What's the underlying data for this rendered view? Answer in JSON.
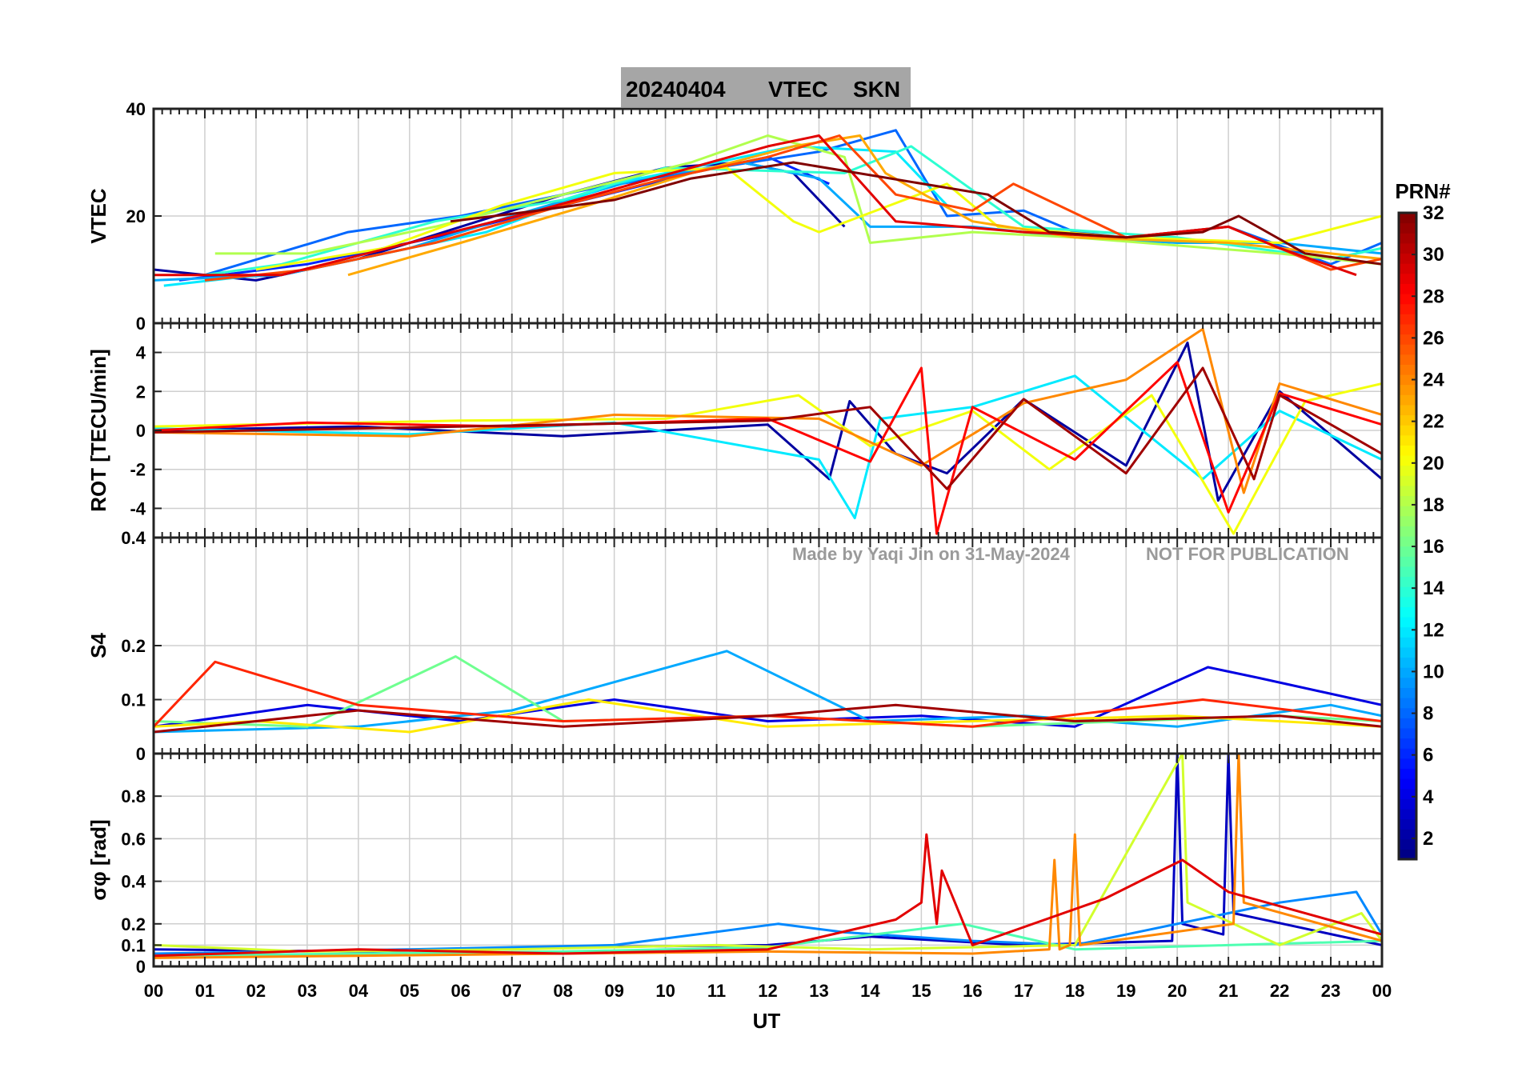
{
  "title": {
    "date": "20240404",
    "quantity": "VTEC",
    "station": "SKN",
    "bg_color": "#a6a6a6"
  },
  "watermark": {
    "author": "Made by Yaqi Jin on 31-May-2024",
    "notice": "NOT FOR PUBLICATION"
  },
  "colorbar": {
    "label": "PRN#",
    "ticks": [
      "2",
      "4",
      "6",
      "8",
      "10",
      "12",
      "14",
      "16",
      "18",
      "20",
      "22",
      "24",
      "26",
      "28",
      "30",
      "32"
    ],
    "range": [
      1,
      32
    ],
    "colormap": "jet"
  },
  "chart_data": [
    {
      "panel": "vtec",
      "type": "line",
      "ylabel": "VTEC",
      "ylim": [
        0,
        40
      ],
      "yticks": [
        "0",
        "20",
        "40"
      ],
      "xlim": [
        0,
        24
      ],
      "grid": true,
      "series": [
        {
          "prn": 2,
          "x": [
            0,
            2,
            4,
            6,
            8,
            10,
            11.5,
            12.5,
            13.5
          ],
          "y": [
            10,
            8,
            12,
            18,
            24,
            29,
            30,
            28,
            18
          ]
        },
        {
          "prn": 6,
          "x": [
            0.5,
            3,
            5.5,
            8,
            10.5,
            12,
            13.2
          ],
          "y": [
            8,
            11,
            16,
            22,
            28,
            31,
            26
          ]
        },
        {
          "prn": 8,
          "x": [
            1,
            3.8,
            6,
            8.5,
            11,
            13,
            14.5,
            15.5,
            17,
            18,
            19,
            21,
            23,
            24
          ],
          "y": [
            9,
            17,
            20,
            25,
            29,
            32,
            36,
            20,
            21,
            17,
            16,
            18,
            11,
            15
          ]
        },
        {
          "prn": 10,
          "x": [
            0,
            2.5,
            5,
            7,
            9.5,
            11.5,
            13,
            14,
            16,
            18,
            20,
            22,
            24
          ],
          "y": [
            8,
            9,
            14,
            20,
            27,
            30,
            27,
            18,
            18,
            16,
            15,
            15,
            13
          ]
        },
        {
          "prn": 12,
          "x": [
            0.2,
            3,
            6.5,
            9,
            11,
            12.5,
            14.5,
            15.5
          ],
          "y": [
            7,
            10,
            17,
            26,
            30,
            33,
            32,
            22
          ]
        },
        {
          "prn": 14,
          "x": [
            1,
            2.5,
            5.5,
            8,
            10,
            13.5,
            14.8,
            17,
            20,
            23,
            24
          ],
          "y": [
            9,
            11,
            19,
            23,
            29,
            28,
            33,
            18,
            16,
            12,
            14
          ]
        },
        {
          "prn": 18,
          "x": [
            1.2,
            3,
            5.5,
            8,
            10.5,
            12,
            13.5,
            14,
            16,
            18,
            22,
            24
          ],
          "y": [
            13,
            13,
            18,
            24,
            30,
            35,
            31,
            15,
            17,
            16,
            13,
            11
          ]
        },
        {
          "prn": 20,
          "x": [
            2,
            4.5,
            6.8,
            9,
            11.2,
            12.5,
            13,
            15.5,
            16.5,
            19,
            22,
            24
          ],
          "y": [
            10,
            14,
            22,
            28,
            29,
            19,
            17,
            26,
            18,
            16,
            15,
            20
          ]
        },
        {
          "prn": 23,
          "x": [
            3.8,
            6,
            8.5,
            10.5,
            12.5,
            13.8,
            14.3,
            16,
            18,
            21,
            24
          ],
          "y": [
            9,
            15,
            22,
            28,
            33,
            35,
            28,
            19,
            16,
            15,
            12
          ]
        },
        {
          "prn": 26,
          "x": [
            1,
            3,
            5.5,
            8,
            10,
            12,
            13.4,
            14.5,
            16,
            16.8,
            19,
            21,
            23,
            24
          ],
          "y": [
            8,
            10,
            15,
            22,
            27,
            31,
            35,
            24,
            21,
            26,
            16,
            18,
            10,
            12
          ]
        },
        {
          "prn": 29,
          "x": [
            0,
            2.5,
            5,
            7.5,
            10.5,
            12,
            13,
            14.5,
            17,
            19,
            21,
            22,
            23.5
          ],
          "y": [
            9,
            9,
            15,
            21,
            29,
            33,
            35,
            19,
            17,
            16,
            18,
            14,
            9
          ]
        },
        {
          "prn": 32,
          "x": [
            5.8,
            7.5,
            9,
            10.5,
            12.5,
            16.3,
            17.5,
            19,
            20.5,
            21.2,
            22.5,
            24
          ],
          "y": [
            19,
            21,
            23,
            27,
            30,
            24,
            17,
            16,
            17,
            20,
            13,
            11
          ]
        }
      ]
    },
    {
      "panel": "rot",
      "type": "line",
      "ylabel": "ROT [TECU/min]",
      "ylim": [
        -5.5,
        5.5
      ],
      "yticks": [
        "-4",
        "-2",
        "0",
        "2",
        "4"
      ],
      "xlim": [
        0,
        24
      ],
      "grid": true,
      "series": [
        {
          "prn": 2,
          "x": [
            0,
            4,
            8,
            12,
            13.2,
            13.6,
            14.5,
            15.5,
            17,
            19,
            20.2,
            20.8,
            22,
            24
          ],
          "y": [
            0,
            0.2,
            -0.3,
            0.3,
            -2.5,
            1.5,
            -1.2,
            -2.2,
            1.6,
            -1.8,
            4.5,
            -3.6,
            2.0,
            -2.5
          ]
        },
        {
          "prn": 12,
          "x": [
            0,
            5,
            9,
            13,
            13.7,
            14.2,
            16,
            18,
            20.5,
            22,
            24
          ],
          "y": [
            0.1,
            -0.2,
            0.4,
            -1.5,
            -4.5,
            0.6,
            1.2,
            2.8,
            -2.5,
            1.0,
            -1.5
          ]
        },
        {
          "prn": 20,
          "x": [
            0,
            6,
            10,
            12.6,
            14,
            16,
            17.5,
            19.5,
            20.5,
            21.1,
            22.5,
            24
          ],
          "y": [
            0.2,
            0.5,
            0.6,
            1.8,
            -0.8,
            1.0,
            -2.0,
            1.8,
            -2.6,
            -5.3,
            1.5,
            2.4
          ]
        },
        {
          "prn": 24,
          "x": [
            0,
            5,
            9,
            13,
            15,
            17,
            19,
            20.5,
            21.3,
            22,
            24
          ],
          "y": [
            -0.1,
            -0.3,
            0.8,
            0.6,
            -1.8,
            1.4,
            2.6,
            5.2,
            -3.2,
            2.4,
            0.8
          ]
        },
        {
          "prn": 28,
          "x": [
            0,
            3,
            7,
            12,
            14,
            15,
            15.3,
            16,
            18,
            20,
            21,
            22,
            24
          ],
          "y": [
            0,
            0.4,
            0.2,
            0.6,
            -1.6,
            3.2,
            -5.3,
            1.2,
            -1.5,
            3.5,
            -4.2,
            1.9,
            0.3
          ]
        },
        {
          "prn": 31,
          "x": [
            0,
            4,
            8,
            12,
            14,
            15.5,
            17,
            19,
            20.5,
            21.5,
            22,
            24
          ],
          "y": [
            -0.1,
            0.1,
            0.3,
            0.5,
            1.2,
            -3.0,
            1.6,
            -2.2,
            3.2,
            -2.5,
            1.8,
            -1.2
          ]
        }
      ]
    },
    {
      "panel": "s4",
      "type": "line",
      "ylabel": "S4",
      "ylim": [
        0,
        0.4
      ],
      "yticks": [
        "0",
        "0.1",
        "0.2",
        "0.4"
      ],
      "xlim": [
        0,
        24
      ],
      "grid": true,
      "series": [
        {
          "prn": 4,
          "x": [
            0,
            3,
            6,
            9,
            12,
            15,
            18,
            20.6,
            21.6,
            24
          ],
          "y": [
            0.05,
            0.09,
            0.06,
            0.1,
            0.06,
            0.07,
            0.05,
            0.16,
            0.14,
            0.09
          ]
        },
        {
          "prn": 10,
          "x": [
            0,
            4,
            7,
            11.2,
            14,
            17,
            20,
            23,
            24
          ],
          "y": [
            0.04,
            0.05,
            0.08,
            0.19,
            0.06,
            0.07,
            0.05,
            0.09,
            0.07
          ]
        },
        {
          "prn": 16,
          "x": [
            0,
            3,
            5.9,
            8,
            12,
            16,
            19,
            22,
            24
          ],
          "y": [
            0.06,
            0.05,
            0.18,
            0.06,
            0.07,
            0.05,
            0.06,
            0.07,
            0.06
          ]
        },
        {
          "prn": 21,
          "x": [
            0,
            2,
            5,
            8.5,
            12,
            16,
            20,
            24
          ],
          "y": [
            0.05,
            0.06,
            0.04,
            0.1,
            0.05,
            0.06,
            0.07,
            0.05
          ]
        },
        {
          "prn": 27,
          "x": [
            0,
            1.2,
            4,
            8,
            12,
            16,
            20.5,
            24
          ],
          "y": [
            0.05,
            0.17,
            0.09,
            0.06,
            0.07,
            0.05,
            0.1,
            0.06
          ]
        },
        {
          "prn": 31,
          "x": [
            0,
            4,
            8,
            12,
            14.5,
            18,
            22,
            24
          ],
          "y": [
            0.04,
            0.08,
            0.05,
            0.07,
            0.09,
            0.06,
            0.07,
            0.05
          ]
        }
      ]
    },
    {
      "panel": "sigma_phi",
      "type": "line",
      "ylabel": "σφ [rad]",
      "ylim": [
        0,
        1
      ],
      "yticks": [
        "0",
        "0.1",
        "0.2",
        "0.4",
        "0.6",
        "0.8"
      ],
      "xlim": [
        0,
        24
      ],
      "grid": true,
      "series": [
        {
          "prn": 3,
          "x": [
            0,
            4,
            8,
            12,
            14,
            17,
            19.9,
            20.0,
            20.1,
            20.9,
            21.0,
            21.1,
            24
          ],
          "y": [
            0.08,
            0.07,
            0.09,
            0.1,
            0.14,
            0.1,
            0.12,
            1.0,
            0.2,
            0.15,
            1.0,
            0.25,
            0.1
          ]
        },
        {
          "prn": 9,
          "x": [
            0,
            5,
            9,
            12.2,
            13.5,
            16,
            18,
            22,
            23.5,
            24
          ],
          "y": [
            0.06,
            0.08,
            0.1,
            0.2,
            0.16,
            0.12,
            0.1,
            0.3,
            0.35,
            0.15
          ]
        },
        {
          "prn": 15,
          "x": [
            0,
            4,
            8,
            12,
            15.8,
            18,
            21,
            24
          ],
          "y": [
            0.05,
            0.06,
            0.07,
            0.09,
            0.2,
            0.08,
            0.1,
            0.12
          ]
        },
        {
          "prn": 19,
          "x": [
            0,
            3,
            7,
            11,
            14,
            18,
            20.1,
            20.2,
            22,
            23.6,
            24
          ],
          "y": [
            0.1,
            0.07,
            0.08,
            0.1,
            0.08,
            0.1,
            1.0,
            0.3,
            0.1,
            0.25,
            0.12
          ]
        },
        {
          "prn": 24,
          "x": [
            0,
            4,
            8,
            12,
            16,
            17.5,
            17.6,
            17.7,
            17.9,
            18.0,
            18.1,
            21.1,
            21.2,
            21.3,
            24
          ],
          "y": [
            0.04,
            0.05,
            0.06,
            0.07,
            0.06,
            0.08,
            0.5,
            0.08,
            0.1,
            0.62,
            0.1,
            0.2,
            1.0,
            0.3,
            0.12
          ]
        },
        {
          "prn": 29,
          "x": [
            0,
            4,
            8,
            12,
            14.5,
            15.0,
            15.1,
            15.3,
            15.4,
            16,
            18.6,
            20.1,
            21,
            24
          ],
          "y": [
            0.05,
            0.08,
            0.06,
            0.08,
            0.22,
            0.3,
            0.62,
            0.2,
            0.45,
            0.1,
            0.32,
            0.5,
            0.35,
            0.15
          ]
        }
      ]
    }
  ],
  "x_axis": {
    "label": "UT",
    "ticks": [
      "00",
      "01",
      "02",
      "03",
      "04",
      "05",
      "06",
      "07",
      "08",
      "09",
      "10",
      "11",
      "12",
      "13",
      "14",
      "15",
      "16",
      "17",
      "18",
      "19",
      "20",
      "21",
      "22",
      "23",
      "00"
    ]
  }
}
